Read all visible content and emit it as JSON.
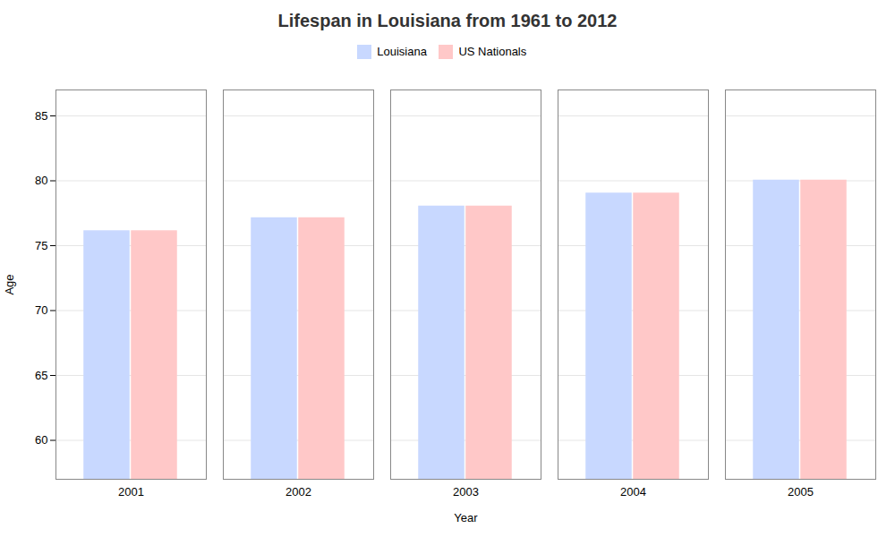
{
  "chart_data": {
    "type": "bar",
    "title": "Lifespan in Louisiana from 1961 to 2012",
    "xlabel": "Year",
    "ylabel": "Age",
    "categories": [
      "2001",
      "2002",
      "2003",
      "2004",
      "2005"
    ],
    "series": [
      {
        "name": "Louisiana",
        "color": "#c8d8ff",
        "values": [
          76.1,
          77.1,
          78.0,
          79.0,
          80.0
        ]
      },
      {
        "name": "US Nationals",
        "color": "#ffc8c8",
        "values": [
          76.1,
          77.1,
          78.0,
          79.0,
          80.0
        ]
      }
    ],
    "ylim": [
      57,
      87
    ],
    "yticks": [
      60,
      65,
      70,
      75,
      80,
      85
    ],
    "grid": true,
    "legend": "top"
  }
}
